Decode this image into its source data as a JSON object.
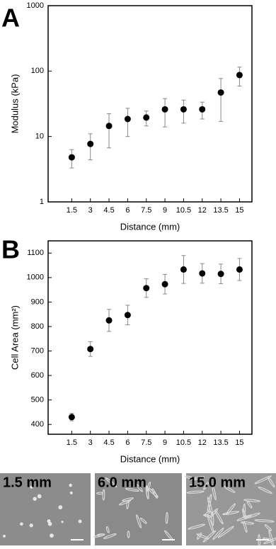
{
  "panel_labels": [
    "A",
    "B"
  ],
  "chart_data": [
    {
      "type": "scatter",
      "x_label": "Distance (mm)",
      "y_label": "Modulus (kPa)",
      "log_y": true,
      "xlim": [
        -0.4,
        16
      ],
      "xticks": [
        1.5,
        3,
        4.5,
        6,
        7.5,
        9,
        10.5,
        12,
        13.5,
        15
      ],
      "ylim": [
        1,
        1000
      ],
      "yticks": [
        1,
        10,
        100,
        1000
      ],
      "color": "#000000",
      "series": [
        {
          "x": [
            1.5,
            3,
            4.5,
            6,
            7.5,
            9,
            10.5,
            12,
            13.5,
            15
          ],
          "values": [
            4.8,
            7.7,
            14.5,
            18.5,
            19.5,
            26,
            26,
            26,
            47,
            87
          ],
          "errors": [
            1.5,
            3.3,
            7.8,
            8.5,
            5,
            12,
            10,
            7.5,
            30,
            28
          ]
        }
      ]
    },
    {
      "type": "scatter",
      "x_label": "Distance (mm)",
      "y_label": "Cell Area (mm²)",
      "log_y": false,
      "xlim": [
        -0.4,
        16
      ],
      "xticks": [
        1.5,
        3,
        4.5,
        6,
        7.5,
        9,
        10.5,
        12,
        13.5,
        15
      ],
      "ylim": [
        360,
        1150
      ],
      "yticks": [
        400,
        500,
        600,
        700,
        800,
        900,
        1000,
        1100
      ],
      "color": "#000000",
      "series": [
        {
          "x": [
            1.5,
            3,
            4.5,
            6,
            7.5,
            9,
            10.5,
            12,
            13.5,
            15
          ],
          "values": [
            430,
            708,
            825,
            847,
            957,
            973,
            1033,
            1017,
            1015,
            1033
          ],
          "errors": [
            15,
            30,
            45,
            40,
            38,
            40,
            57,
            40,
            40,
            45
          ]
        }
      ]
    }
  ],
  "images": [
    {
      "label": "1.5 mm"
    },
    {
      "label": "6.0 mm"
    },
    {
      "label": "15.0 mm"
    }
  ]
}
